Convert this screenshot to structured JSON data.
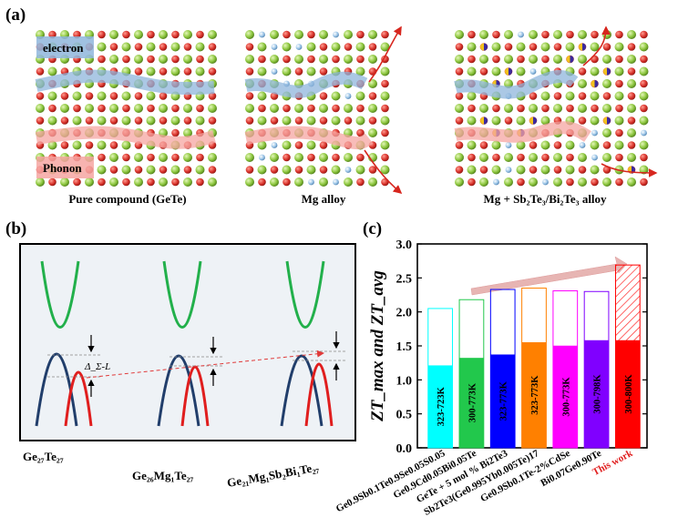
{
  "panel_labels": {
    "a": "(a)",
    "b": "(b)",
    "c": "(c)"
  },
  "panel_a": {
    "captions": [
      "Pure compound (GeTe)",
      "Mg alloy",
      "Mg + Sb₂Te₃/Bi₂Te₃ alloy"
    ],
    "legend": {
      "electron": "electron",
      "phonon": "Phonon"
    },
    "colors": {
      "atom_red": "#d8322b",
      "atom_green": "#8cc63e",
      "atom_blue": "#9dc6e8",
      "electron_path": "#8fb6dc",
      "phonon_path": "#f6a6a2",
      "scatter_arrow": "#d7261e"
    }
  },
  "panel_b": {
    "compositions": [
      "Ge₂₇Te₂₇",
      "Ge₂₆Mg₁Te₂₇",
      "Ge₂₁Mg₁Sb₂Bi₁Te₂₇"
    ],
    "gap_label": "Δ_Σ-L",
    "colors": {
      "conduction": "#22b04b",
      "sigma": "#213e6b",
      "L": "#e01e1e",
      "bg": "#eef2f6"
    }
  },
  "chart_data": {
    "type": "bar",
    "title": "",
    "ylabel": "ZT_max and ZT_avg",
    "xlabel": "",
    "ylim": [
      0,
      3.0
    ],
    "yticks": [
      "0.0",
      "0.5",
      "1.0",
      "1.5",
      "2.0",
      "2.5",
      "3.0"
    ],
    "categories": [
      "Ge0.9Sb0.1Te0.9Se0.05S0.05",
      "Ge0.9Cd0.05Bi0.05Te",
      "GeTe + 5 mol % Bi2Te3",
      "Sb2Te3(Ge0.995Yb0.005Te)17",
      "Ge0.9Sb0.1Te-2%CdSe",
      "Bi0.07Ge0.90Te",
      "This work"
    ],
    "series": [
      {
        "name": "ZT_max",
        "values": [
          2.05,
          2.18,
          2.33,
          2.35,
          2.31,
          2.3,
          2.69
        ]
      },
      {
        "name": "ZT_avg",
        "values": [
          1.21,
          1.32,
          1.37,
          1.55,
          1.5,
          1.58,
          1.58
        ]
      }
    ],
    "ranges": [
      "323-723K",
      "300-773K",
      "323-773K",
      "323-773K",
      "300-773K",
      "300-798K",
      "300-800K"
    ],
    "colors": [
      "#00ffff",
      "#22c84c",
      "#0000ff",
      "#ff8000",
      "#ff00ff",
      "#8000ff",
      "#ff0000"
    ],
    "highlight_label_color": "#e01e1e"
  }
}
